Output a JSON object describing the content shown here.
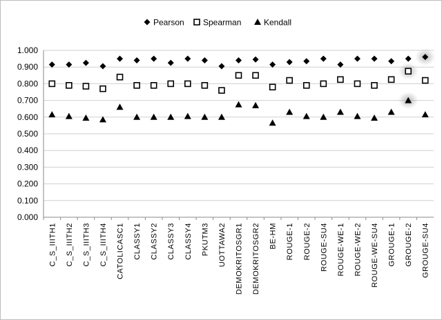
{
  "chart_data": {
    "type": "scatter",
    "title": "",
    "xlabel": "",
    "ylabel": "",
    "ylim": [
      0,
      1
    ],
    "ytick_step": 0.1,
    "grid": "horizontal",
    "legend_position": "top",
    "categories": [
      "C_S_IIITH1",
      "C_S_IIITH2",
      "C_S_IIITH3",
      "C_S_IIITH4",
      "CATOLICASC1",
      "CLASSY1",
      "CLASSY2",
      "CLASSY3",
      "CLASSY4",
      "PKUTM3",
      "UOTTAWA2",
      "DEMOKRITOSGR1",
      "DEMOKRITOSGR2",
      "BE-HM",
      "ROUGE-1",
      "ROUGE-2",
      "ROUGE-SU4",
      "ROUGE-WE-1",
      "ROUGE-WE-2",
      "ROUGE-WE-SU4",
      "GROUGE-1",
      "GROUGE-2",
      "GROUGE-SU4"
    ],
    "series": [
      {
        "name": "Pearson",
        "marker": "diamond",
        "color": "#000000",
        "values": [
          0.915,
          0.915,
          0.925,
          0.905,
          0.95,
          0.94,
          0.95,
          0.925,
          0.95,
          0.94,
          0.905,
          0.94,
          0.945,
          0.915,
          0.93,
          0.935,
          0.95,
          0.915,
          0.95,
          0.95,
          0.935,
          0.95,
          0.96
        ]
      },
      {
        "name": "Spearman",
        "marker": "square",
        "color": "#000000",
        "values": [
          0.8,
          0.79,
          0.785,
          0.77,
          0.84,
          0.79,
          0.79,
          0.8,
          0.8,
          0.79,
          0.76,
          0.85,
          0.85,
          0.78,
          0.82,
          0.79,
          0.8,
          0.825,
          0.8,
          0.79,
          0.825,
          0.875,
          0.82
        ]
      },
      {
        "name": "Kendall",
        "marker": "triangle",
        "color": "#000000",
        "values": [
          0.615,
          0.605,
          0.595,
          0.585,
          0.66,
          0.6,
          0.6,
          0.6,
          0.605,
          0.6,
          0.6,
          0.675,
          0.67,
          0.565,
          0.63,
          0.605,
          0.6,
          0.63,
          0.605,
          0.595,
          0.63,
          0.7,
          0.615
        ]
      }
    ],
    "highlights": [
      {
        "series": "Pearson",
        "category": "GROUGE-SU4"
      },
      {
        "series": "Spearman",
        "category": "GROUGE-2"
      },
      {
        "series": "Kendall",
        "category": "GROUGE-2"
      }
    ]
  }
}
